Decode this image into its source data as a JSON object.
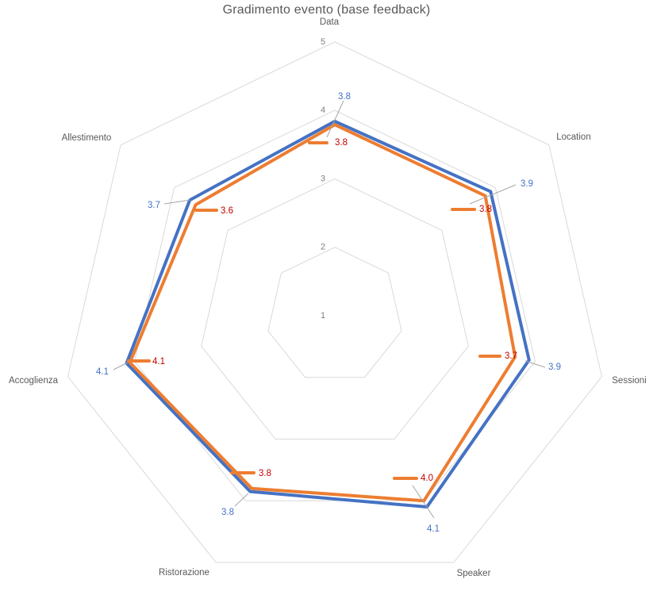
{
  "title": "Gradimento evento (base feedback)",
  "chart_data": {
    "type": "line",
    "subtype": "radar",
    "title": "Gradimento evento (base feedback)",
    "categories": [
      "Data",
      "Location",
      "Sessioni",
      "Speaker",
      "Ristorazione",
      "Accoglienza",
      "Allestimento"
    ],
    "radial_axis": {
      "min": 1,
      "max": 5,
      "tick_labels": [
        "1",
        "2",
        "3",
        "4",
        "5"
      ],
      "grid": true
    },
    "legend": false,
    "series": [
      {
        "color": "#4472C4",
        "label_color": "#4472C4",
        "values": [
          3.8,
          3.9,
          3.9,
          4.1,
          3.8,
          4.1,
          3.7
        ],
        "labels": [
          "3.8",
          "3.9",
          "3.9",
          "4.1",
          "3.8",
          "4.1",
          "3.7"
        ],
        "plot_values": [
          3.84,
          3.91,
          3.91,
          4.1,
          3.85,
          4.12,
          3.71
        ]
      },
      {
        "color": "#ED7D31",
        "label_color": "#C00000",
        "values": [
          3.8,
          3.8,
          3.7,
          4.0,
          3.8,
          4.1,
          3.6
        ],
        "labels": [
          "3.8",
          "3.8",
          "3.7",
          "4.0",
          "3.8",
          "4.1",
          "3.6"
        ],
        "plot_values": [
          3.79,
          3.81,
          3.7,
          4.0,
          3.8,
          4.07,
          3.6
        ]
      }
    ],
    "colors": {
      "grid": "#D9D9D9",
      "axis_label": "#595959",
      "tick_label": "#808080",
      "leader": "#A6A6A6",
      "background": "#FFFFFF"
    }
  }
}
